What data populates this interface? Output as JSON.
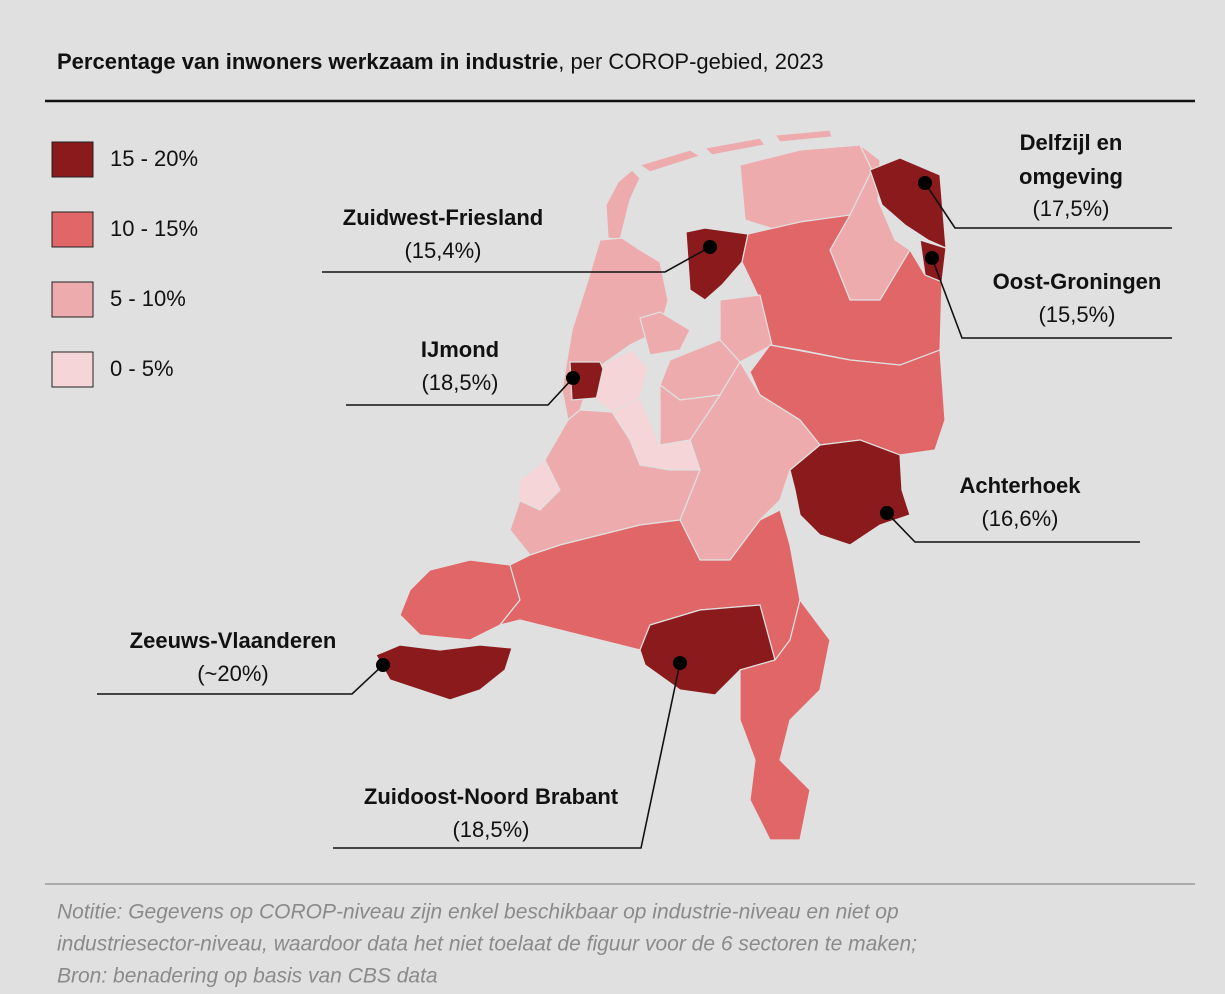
{
  "header": {
    "title_bold": "Percentage van inwoners werkzaam in industrie",
    "title_rest": ", per COROP-gebied, 2023"
  },
  "legend": [
    {
      "label": "15 - 20%",
      "color": "#8b1a1d"
    },
    {
      "label": "10 - 15%",
      "color": "#e06668"
    },
    {
      "label": "5 - 10%",
      "color": "#eeabad"
    },
    {
      "label": "0 - 5%",
      "color": "#f5d5d7"
    }
  ],
  "callouts": [
    {
      "name_lines": [
        "Zuidwest-Friesland"
      ],
      "value": "(15,4%)"
    },
    {
      "name_lines": [
        "IJmond"
      ],
      "value": "(18,5%)"
    },
    {
      "name_lines": [
        "Delfzijl en",
        "omgeving"
      ],
      "value": "(17,5%)"
    },
    {
      "name_lines": [
        "Oost-Groningen"
      ],
      "value": "(15,5%)"
    },
    {
      "name_lines": [
        "Achterhoek"
      ],
      "value": "(16,6%)"
    },
    {
      "name_lines": [
        "Zeeuws-Vlaanderen"
      ],
      "value": "(~20%)"
    },
    {
      "name_lines": [
        "Zuidoost-Noord Brabant"
      ],
      "value": "(18,5%)"
    }
  ],
  "note": [
    "Notitie: Gegevens op COROP-niveau zijn enkel beschikbaar op industrie-niveau en niet op",
    "industriesector-niveau, waardoor data het niet toelaat de figuur voor de 6 sectoren te maken;",
    "Bron: benadering op basis van CBS data"
  ]
}
